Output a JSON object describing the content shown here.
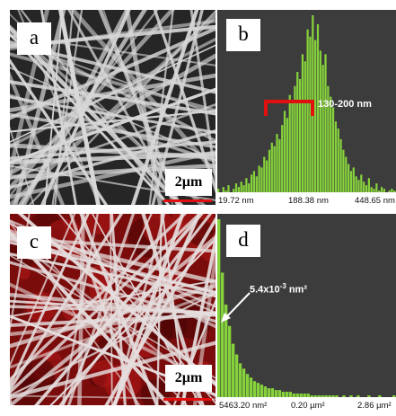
{
  "panels": {
    "a": {
      "label": "a",
      "scale_bar": "2µm"
    },
    "b": {
      "label": "b",
      "range_annotation": "130-200 nm",
      "x_ticks": [
        "19.72 nm",
        "188.38 nm",
        "448.65 nm"
      ]
    },
    "c": {
      "label": "c",
      "scale_bar": "2µm"
    },
    "d": {
      "label": "d",
      "annotation_base": "5.4x10",
      "annotation_exp": "-3",
      "annotation_unit": " nm²",
      "x_ticks": [
        "5463.20 nm²",
        "0.20 µm²",
        "2.86 µm²"
      ]
    }
  },
  "colors": {
    "bar": "#86d23c",
    "bracket": "#e01010",
    "bg_dark": "#3c3c3c"
  },
  "chart_data": [
    {
      "type": "bar",
      "title": "",
      "xlabel": "",
      "ylabel": "",
      "x_range": [
        "19.72 nm",
        "448.65 nm"
      ],
      "values": [
        2,
        0,
        3,
        1,
        4,
        0,
        2,
        5,
        3,
        6,
        4,
        8,
        5,
        10,
        12,
        9,
        15,
        14,
        20,
        18,
        24,
        28,
        26,
        33,
        30,
        38,
        46,
        42,
        55,
        52,
        60,
        68,
        64,
        78,
        74,
        92,
        88,
        100,
        86,
        95,
        80,
        72,
        78,
        60,
        54,
        48,
        40,
        36,
        30,
        24,
        20,
        16,
        12,
        14,
        9,
        7,
        10,
        6,
        4,
        8,
        3,
        2,
        5,
        1,
        3,
        2,
        0,
        1,
        2,
        1
      ]
    },
    {
      "type": "bar",
      "title": "",
      "xlabel": "",
      "ylabel": "",
      "x_range": [
        "5463.20 nm²",
        "2.86 µm²"
      ],
      "values": [
        100,
        70,
        52,
        40,
        30,
        24,
        19,
        16,
        13,
        11,
        9,
        8,
        7,
        6,
        5,
        5,
        4,
        4,
        3,
        3,
        3,
        2,
        2,
        2,
        2,
        2,
        1,
        1,
        1,
        1,
        1,
        1,
        1,
        1,
        0,
        1,
        0,
        1,
        0,
        1,
        0,
        0,
        1,
        0,
        0,
        1,
        0,
        0,
        0,
        1
      ]
    }
  ]
}
